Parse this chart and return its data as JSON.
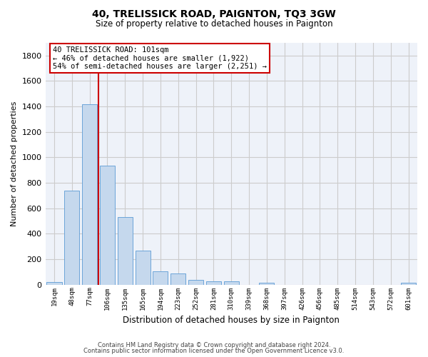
{
  "title": "40, TRELISSICK ROAD, PAIGNTON, TQ3 3GW",
  "subtitle": "Size of property relative to detached houses in Paignton",
  "xlabel": "Distribution of detached houses by size in Paignton",
  "ylabel": "Number of detached properties",
  "bar_labels": [
    "19sqm",
    "48sqm",
    "77sqm",
    "106sqm",
    "135sqm",
    "165sqm",
    "194sqm",
    "223sqm",
    "252sqm",
    "281sqm",
    "310sqm",
    "339sqm",
    "368sqm",
    "397sqm",
    "426sqm",
    "456sqm",
    "485sqm",
    "514sqm",
    "543sqm",
    "572sqm",
    "601sqm"
  ],
  "bar_values": [
    20,
    740,
    1420,
    935,
    530,
    265,
    103,
    90,
    38,
    25,
    25,
    0,
    15,
    0,
    0,
    0,
    0,
    0,
    0,
    0,
    15
  ],
  "bar_color": "#c5d8ed",
  "bar_edge_color": "#5b9bd5",
  "vline_color": "#cc0000",
  "annotation_line1": "40 TRELISSICK ROAD: 101sqm",
  "annotation_line2": "← 46% of detached houses are smaller (1,922)",
  "annotation_line3": "54% of semi-detached houses are larger (2,251) →",
  "annotation_box_color": "#cc0000",
  "ylim": [
    0,
    1900
  ],
  "yticks": [
    0,
    200,
    400,
    600,
    800,
    1000,
    1200,
    1400,
    1600,
    1800
  ],
  "grid_color": "#cccccc",
  "bg_color": "#eef2f9",
  "footer_line1": "Contains HM Land Registry data © Crown copyright and database right 2024.",
  "footer_line2": "Contains public sector information licensed under the Open Government Licence v3.0."
}
